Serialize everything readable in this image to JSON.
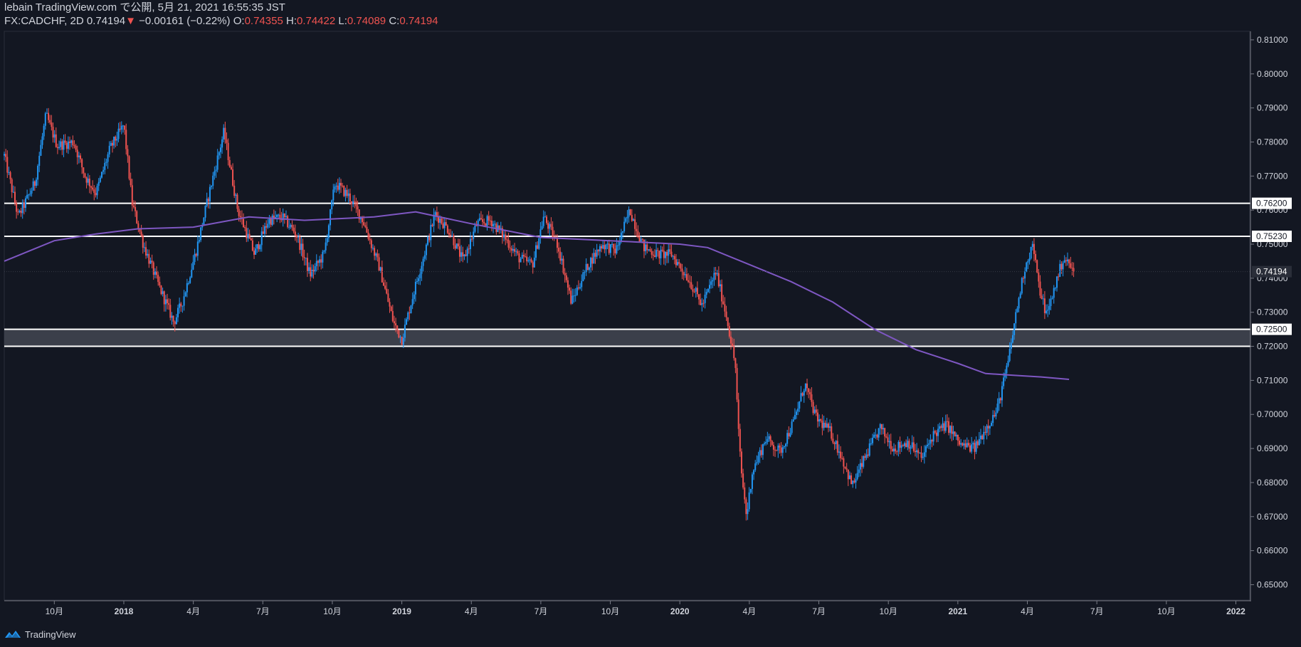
{
  "header": {
    "published": "lebain TradingView.com で公開, 5月 21, 2021 16:55:35 JST",
    "symbol": "FX:CADCHF, 2D",
    "last": "0.74194",
    "change_arrow": "▼",
    "change": "−0.00161 (−0.22%)",
    "open_label": "O:",
    "open": "0.74355",
    "high_label": "H:",
    "high": "0.74422",
    "low_label": "L:",
    "low": "0.74089",
    "close_label": "C:",
    "close": "0.74194"
  },
  "footer": {
    "brand": "TradingView"
  },
  "colors": {
    "background": "#131722",
    "up": "#2196f3",
    "down": "#ef5350",
    "ma": "#7e57c2",
    "level_line": "#ffffff",
    "zone": "#434651",
    "axis_text": "#d1d4dc"
  },
  "chart_data": {
    "type": "candlestick",
    "title": "FX:CADCHF, 2D",
    "ylim": [
      0.6455,
      0.8125
    ],
    "y_ticks": [
      "0.81000",
      "0.80000",
      "0.79000",
      "0.78000",
      "0.77000",
      "0.76000",
      "0.75000",
      "0.74000",
      "0.73000",
      "0.72000",
      "0.71000",
      "0.70000",
      "0.69000",
      "0.68000",
      "0.67000",
      "0.66000",
      "0.65000"
    ],
    "x_ticks": [
      {
        "label": "10月",
        "t": 2017.75
      },
      {
        "label": "2018",
        "t": 2018.0
      },
      {
        "label": "4月",
        "t": 2018.25
      },
      {
        "label": "7月",
        "t": 2018.5
      },
      {
        "label": "10月",
        "t": 2018.75
      },
      {
        "label": "2019",
        "t": 2019.0
      },
      {
        "label": "4月",
        "t": 2019.25
      },
      {
        "label": "7月",
        "t": 2019.5
      },
      {
        "label": "10月",
        "t": 2019.75
      },
      {
        "label": "2020",
        "t": 2020.0
      },
      {
        "label": "4月",
        "t": 2020.25
      },
      {
        "label": "7月",
        "t": 2020.5
      },
      {
        "label": "10月",
        "t": 2020.75
      },
      {
        "label": "2021",
        "t": 2021.0
      },
      {
        "label": "4月",
        "t": 2021.25
      },
      {
        "label": "7月",
        "t": 2021.5
      },
      {
        "label": "10月",
        "t": 2021.75
      },
      {
        "label": "2022",
        "t": 2022.0
      }
    ],
    "xlim": [
      2017.57,
      2022.05
    ],
    "price_path": [
      [
        2017.57,
        0.776
      ],
      [
        2017.62,
        0.758
      ],
      [
        2017.68,
        0.768
      ],
      [
        2017.72,
        0.788
      ],
      [
        2017.76,
        0.779
      ],
      [
        2017.82,
        0.78
      ],
      [
        2017.86,
        0.77
      ],
      [
        2017.9,
        0.765
      ],
      [
        2017.95,
        0.778
      ],
      [
        2018.0,
        0.785
      ],
      [
        2018.03,
        0.762
      ],
      [
        2018.07,
        0.75
      ],
      [
        2018.12,
        0.739
      ],
      [
        2018.18,
        0.727
      ],
      [
        2018.21,
        0.733
      ],
      [
        2018.26,
        0.748
      ],
      [
        2018.31,
        0.766
      ],
      [
        2018.36,
        0.783
      ],
      [
        2018.41,
        0.76
      ],
      [
        2018.47,
        0.747
      ],
      [
        2018.52,
        0.757
      ],
      [
        2018.57,
        0.758
      ],
      [
        2018.62,
        0.753
      ],
      [
        2018.67,
        0.741
      ],
      [
        2018.72,
        0.747
      ],
      [
        2018.76,
        0.768
      ],
      [
        2018.81,
        0.764
      ],
      [
        2018.86,
        0.757
      ],
      [
        2018.92,
        0.743
      ],
      [
        2018.97,
        0.727
      ],
      [
        2019.0,
        0.722
      ],
      [
        2019.04,
        0.735
      ],
      [
        2019.08,
        0.747
      ],
      [
        2019.12,
        0.759
      ],
      [
        2019.17,
        0.754
      ],
      [
        2019.22,
        0.745
      ],
      [
        2019.27,
        0.756
      ],
      [
        2019.32,
        0.757
      ],
      [
        2019.37,
        0.752
      ],
      [
        2019.42,
        0.746
      ],
      [
        2019.47,
        0.744
      ],
      [
        2019.51,
        0.758
      ],
      [
        2019.56,
        0.75
      ],
      [
        2019.61,
        0.733
      ],
      [
        2019.67,
        0.744
      ],
      [
        2019.72,
        0.75
      ],
      [
        2019.77,
        0.748
      ],
      [
        2019.82,
        0.76
      ],
      [
        2019.87,
        0.749
      ],
      [
        2019.92,
        0.747
      ],
      [
        2019.97,
        0.747
      ],
      [
        2020.03,
        0.74
      ],
      [
        2020.08,
        0.732
      ],
      [
        2020.13,
        0.742
      ],
      [
        2020.17,
        0.728
      ],
      [
        2020.2,
        0.714
      ],
      [
        2020.21,
        0.696
      ],
      [
        2020.22,
        0.684
      ],
      [
        2020.24,
        0.67
      ],
      [
        2020.26,
        0.683
      ],
      [
        2020.31,
        0.693
      ],
      [
        2020.36,
        0.689
      ],
      [
        2020.41,
        0.698
      ],
      [
        2020.45,
        0.709
      ],
      [
        2020.49,
        0.699
      ],
      [
        2020.54,
        0.695
      ],
      [
        2020.58,
        0.688
      ],
      [
        2020.62,
        0.679
      ],
      [
        2020.67,
        0.688
      ],
      [
        2020.72,
        0.696
      ],
      [
        2020.77,
        0.69
      ],
      [
        2020.82,
        0.692
      ],
      [
        2020.87,
        0.687
      ],
      [
        2020.91,
        0.694
      ],
      [
        2020.96,
        0.697
      ],
      [
        2021.01,
        0.691
      ],
      [
        2021.06,
        0.69
      ],
      [
        2021.1,
        0.696
      ],
      [
        2021.14,
        0.701
      ],
      [
        2021.18,
        0.715
      ],
      [
        2021.21,
        0.73
      ],
      [
        2021.24,
        0.743
      ],
      [
        2021.27,
        0.75
      ],
      [
        2021.29,
        0.738
      ],
      [
        2021.32,
        0.729
      ],
      [
        2021.35,
        0.738
      ],
      [
        2021.38,
        0.746
      ],
      [
        2021.4,
        0.744
      ],
      [
        2021.42,
        0.7419
      ]
    ],
    "moving_average": [
      [
        2017.57,
        0.745
      ],
      [
        2017.75,
        0.751
      ],
      [
        2017.9,
        0.753
      ],
      [
        2018.05,
        0.7545
      ],
      [
        2018.25,
        0.755
      ],
      [
        2018.45,
        0.758
      ],
      [
        2018.65,
        0.757
      ],
      [
        2018.9,
        0.758
      ],
      [
        2019.05,
        0.7595
      ],
      [
        2019.25,
        0.756
      ],
      [
        2019.5,
        0.752
      ],
      [
        2019.75,
        0.751
      ],
      [
        2020.0,
        0.75
      ],
      [
        2020.1,
        0.749
      ],
      [
        2020.25,
        0.744
      ],
      [
        2020.4,
        0.739
      ],
      [
        2020.55,
        0.733
      ],
      [
        2020.7,
        0.725
      ],
      [
        2020.85,
        0.719
      ],
      [
        2021.0,
        0.715
      ],
      [
        2021.1,
        0.712
      ],
      [
        2021.2,
        0.7115
      ],
      [
        2021.3,
        0.711
      ],
      [
        2021.4,
        0.7103
      ]
    ],
    "horizontal_levels": [
      {
        "price": 0.762,
        "label": "0.76200"
      },
      {
        "price": 0.7523,
        "label": "0.75230"
      },
      {
        "price": 0.725,
        "label": "0.72500"
      },
      {
        "price": 0.72,
        "label": ""
      }
    ],
    "zone": {
      "from": 0.72,
      "to": 0.725
    },
    "last_price": {
      "price": 0.74194,
      "label": "0.74194"
    }
  }
}
